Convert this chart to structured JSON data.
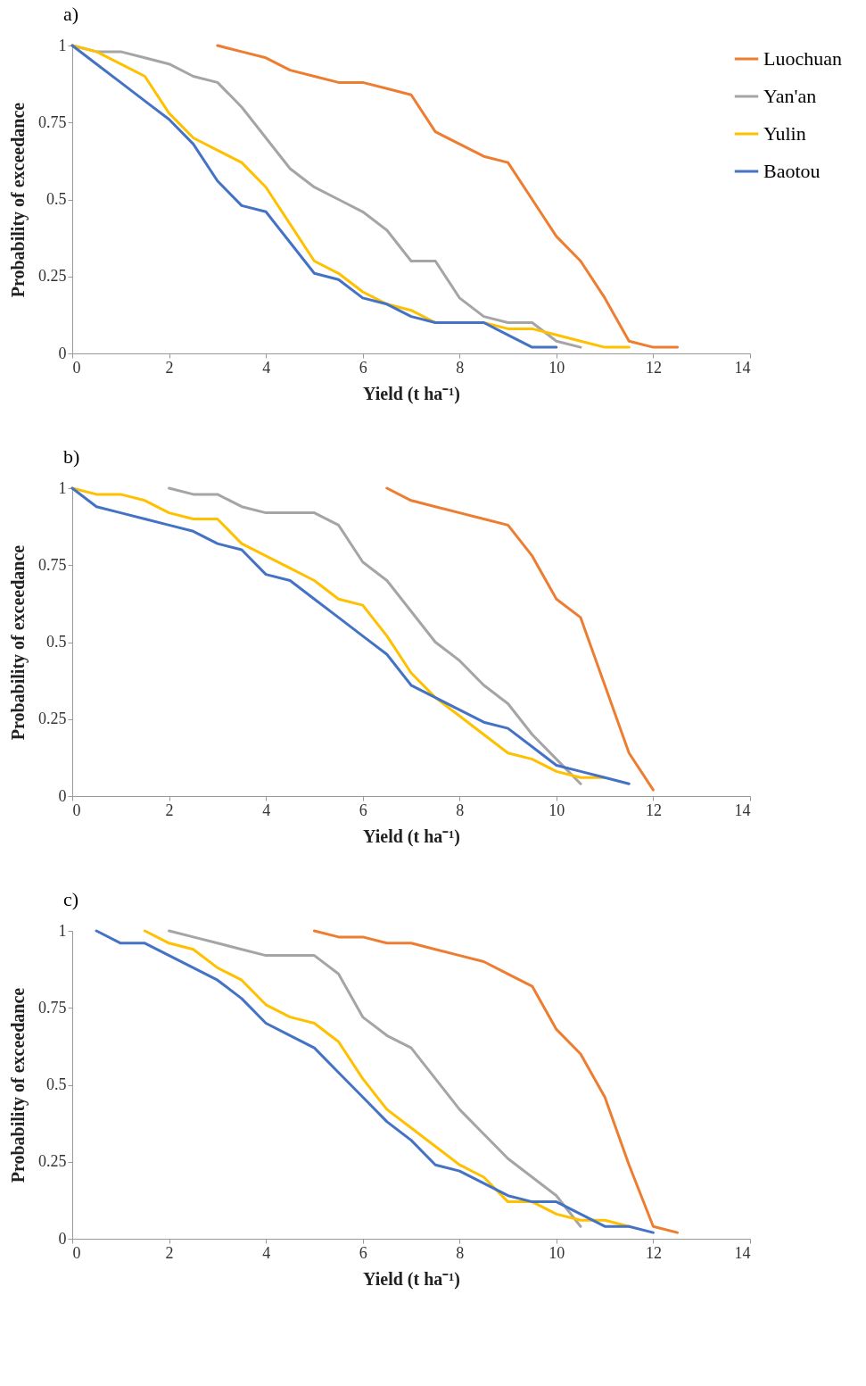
{
  "chart_data": [
    {
      "type": "line",
      "title": "a)",
      "xlabel": "Yield (t ha⁻¹)",
      "ylabel": "Probability of exceedance",
      "xlim": [
        0,
        14
      ],
      "xticks": [
        0,
        2,
        4,
        6,
        8,
        10,
        12,
        14
      ],
      "ylim": [
        0,
        1
      ],
      "yticks": [
        0,
        0.25,
        0.5,
        0.75,
        1
      ],
      "grid": false,
      "legend": "right",
      "marker": "none",
      "line_style": "solid",
      "series": [
        {
          "name": "Luochuan",
          "color": "#ed7d31",
          "x": [
            3,
            3.5,
            4,
            4.5,
            5,
            5.5,
            6,
            6.5,
            7,
            7.5,
            8,
            8.5,
            9,
            9.5,
            10,
            10.5,
            11,
            11.5,
            12,
            12.5
          ],
          "values": [
            1,
            0.98,
            0.96,
            0.92,
            0.9,
            0.88,
            0.88,
            0.86,
            0.84,
            0.72,
            0.68,
            0.64,
            0.62,
            0.5,
            0.38,
            0.3,
            0.18,
            0.04,
            0.02,
            0.02
          ]
        },
        {
          "name": "Yan'an",
          "color": "#a5a5a5",
          "x": [
            0,
            0.5,
            1,
            1.5,
            2,
            2.5,
            3,
            3.5,
            4,
            4.5,
            5,
            5.5,
            6,
            6.5,
            7,
            7.5,
            8,
            8.5,
            9,
            9.5,
            10,
            10.5
          ],
          "values": [
            1,
            0.98,
            0.98,
            0.96,
            0.94,
            0.9,
            0.88,
            0.8,
            0.7,
            0.6,
            0.54,
            0.5,
            0.46,
            0.4,
            0.3,
            0.3,
            0.18,
            0.12,
            0.1,
            0.1,
            0.04,
            0.02
          ]
        },
        {
          "name": "Yulin",
          "color": "#ffc000",
          "x": [
            0,
            0.5,
            1,
            1.5,
            2,
            2.5,
            3,
            3.5,
            4,
            4.5,
            5,
            5.5,
            6,
            6.5,
            7,
            7.5,
            8,
            8.5,
            9,
            9.5,
            10,
            10.5,
            11,
            11.5
          ],
          "values": [
            1,
            0.98,
            0.94,
            0.9,
            0.78,
            0.7,
            0.66,
            0.62,
            0.54,
            0.42,
            0.3,
            0.26,
            0.2,
            0.16,
            0.14,
            0.1,
            0.1,
            0.1,
            0.08,
            0.08,
            0.06,
            0.04,
            0.02,
            0.02
          ]
        },
        {
          "name": "Baotou",
          "color": "#4472c4",
          "x": [
            0,
            0.5,
            1,
            1.5,
            2,
            2.5,
            3,
            3.5,
            4,
            4.5,
            5,
            5.5,
            6,
            6.5,
            7,
            7.5,
            8,
            8.5,
            9,
            9.5,
            10
          ],
          "values": [
            1,
            0.94,
            0.88,
            0.82,
            0.76,
            0.68,
            0.56,
            0.48,
            0.46,
            0.36,
            0.26,
            0.24,
            0.18,
            0.16,
            0.12,
            0.1,
            0.1,
            0.1,
            0.06,
            0.02,
            0.02
          ]
        }
      ]
    },
    {
      "type": "line",
      "title": "b)",
      "xlabel": "Yield (t ha⁻¹)",
      "ylabel": "Probability of exceedance",
      "xlim": [
        0,
        14
      ],
      "xticks": [
        0,
        2,
        4,
        6,
        8,
        10,
        12,
        14
      ],
      "ylim": [
        0,
        1
      ],
      "yticks": [
        0,
        0.25,
        0.5,
        0.75,
        1
      ],
      "grid": false,
      "legend": "right",
      "marker": "none",
      "line_style": "solid",
      "series": [
        {
          "name": "Luochuan",
          "color": "#ed7d31",
          "x": [
            6.5,
            7,
            7.5,
            8,
            8.5,
            9,
            9.5,
            10,
            10.5,
            11,
            11.5,
            12
          ],
          "values": [
            1,
            0.96,
            0.94,
            0.92,
            0.9,
            0.88,
            0.78,
            0.64,
            0.58,
            0.36,
            0.14,
            0.02
          ]
        },
        {
          "name": "Yan'an",
          "color": "#a5a5a5",
          "x": [
            2,
            2.5,
            3,
            3.5,
            4,
            4.5,
            5,
            5.5,
            6,
            6.5,
            7,
            7.5,
            8,
            8.5,
            9,
            9.5,
            10,
            10.5
          ],
          "values": [
            1,
            0.98,
            0.98,
            0.94,
            0.92,
            0.92,
            0.92,
            0.88,
            0.76,
            0.7,
            0.6,
            0.5,
            0.44,
            0.36,
            0.3,
            0.2,
            0.12,
            0.04
          ]
        },
        {
          "name": "Yulin",
          "color": "#ffc000",
          "x": [
            0,
            0.5,
            1,
            1.5,
            2,
            2.5,
            3,
            3.5,
            4,
            4.5,
            5,
            5.5,
            6,
            6.5,
            7,
            7.5,
            8,
            8.5,
            9,
            9.5,
            10,
            10.5,
            11
          ],
          "values": [
            1,
            0.98,
            0.98,
            0.96,
            0.92,
            0.9,
            0.9,
            0.82,
            0.78,
            0.74,
            0.7,
            0.64,
            0.62,
            0.52,
            0.4,
            0.32,
            0.26,
            0.2,
            0.14,
            0.12,
            0.08,
            0.06,
            0.06
          ]
        },
        {
          "name": "Baotou",
          "color": "#4472c4",
          "x": [
            0,
            0.5,
            1,
            1.5,
            2,
            2.5,
            3,
            3.5,
            4,
            4.5,
            5,
            5.5,
            6,
            6.5,
            7,
            7.5,
            8,
            8.5,
            9,
            9.5,
            10,
            10.5,
            11,
            11.5
          ],
          "values": [
            1,
            0.94,
            0.92,
            0.9,
            0.88,
            0.86,
            0.82,
            0.8,
            0.72,
            0.7,
            0.64,
            0.58,
            0.52,
            0.46,
            0.36,
            0.32,
            0.28,
            0.24,
            0.22,
            0.16,
            0.1,
            0.08,
            0.06,
            0.04
          ]
        }
      ]
    },
    {
      "type": "line",
      "title": "c)",
      "xlabel": "Yield (t ha⁻¹)",
      "ylabel": "Probability of exceedance",
      "xlim": [
        0,
        14
      ],
      "xticks": [
        0,
        2,
        4,
        6,
        8,
        10,
        12,
        14
      ],
      "ylim": [
        0,
        1
      ],
      "yticks": [
        0,
        0.25,
        0.5,
        0.75,
        1
      ],
      "grid": false,
      "legend": "right",
      "marker": "none",
      "line_style": "solid",
      "series": [
        {
          "name": "Luochuan",
          "color": "#ed7d31",
          "x": [
            5,
            5.5,
            6,
            6.5,
            7,
            7.5,
            8,
            8.5,
            9,
            9.5,
            10,
            10.5,
            11,
            11.5,
            12,
            12.5
          ],
          "values": [
            1,
            0.98,
            0.98,
            0.96,
            0.96,
            0.94,
            0.92,
            0.9,
            0.86,
            0.82,
            0.68,
            0.6,
            0.46,
            0.24,
            0.04,
            0.02
          ]
        },
        {
          "name": "Yan'an",
          "color": "#a5a5a5",
          "x": [
            2,
            2.5,
            3,
            3.5,
            4,
            4.5,
            5,
            5.5,
            6,
            6.5,
            7,
            7.5,
            8,
            8.5,
            9,
            9.5,
            10,
            10.5
          ],
          "values": [
            1,
            0.98,
            0.96,
            0.94,
            0.92,
            0.92,
            0.92,
            0.86,
            0.72,
            0.66,
            0.62,
            0.52,
            0.42,
            0.34,
            0.26,
            0.2,
            0.14,
            0.04
          ]
        },
        {
          "name": "Yulin",
          "color": "#ffc000",
          "x": [
            1.5,
            2,
            2.5,
            3,
            3.5,
            4,
            4.5,
            5,
            5.5,
            6,
            6.5,
            7,
            7.5,
            8,
            8.5,
            9,
            9.5,
            10,
            10.5,
            11,
            11.5
          ],
          "values": [
            1,
            0.96,
            0.94,
            0.88,
            0.84,
            0.76,
            0.72,
            0.7,
            0.64,
            0.52,
            0.42,
            0.36,
            0.3,
            0.24,
            0.2,
            0.12,
            0.12,
            0.08,
            0.06,
            0.06,
            0.04
          ]
        },
        {
          "name": "Baotou",
          "color": "#4472c4",
          "x": [
            0.5,
            1,
            1.5,
            2,
            2.5,
            3,
            3.5,
            4,
            4.5,
            5,
            5.5,
            6,
            6.5,
            7,
            7.5,
            8,
            8.5,
            9,
            9.5,
            10,
            10.5,
            11,
            11.5,
            12
          ],
          "values": [
            1,
            0.96,
            0.96,
            0.92,
            0.88,
            0.84,
            0.78,
            0.7,
            0.66,
            0.62,
            0.54,
            0.46,
            0.38,
            0.32,
            0.24,
            0.22,
            0.18,
            0.14,
            0.12,
            0.12,
            0.08,
            0.04,
            0.04,
            0.02
          ]
        }
      ]
    }
  ]
}
